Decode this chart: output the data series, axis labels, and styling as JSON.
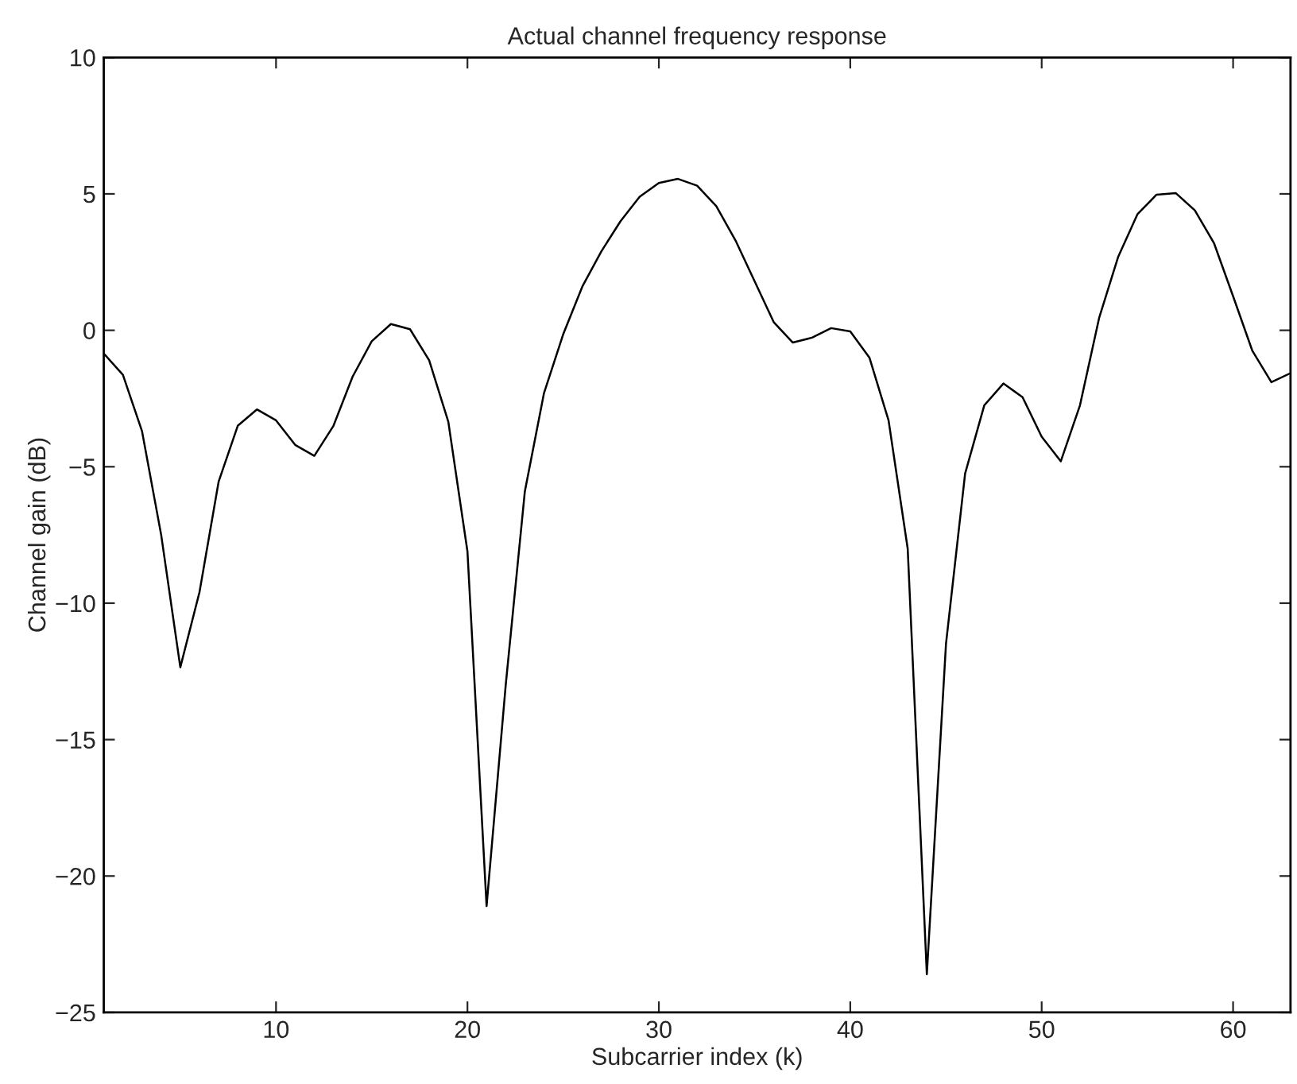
{
  "chart_data": {
    "type": "line",
    "title": "Actual channel frequency response",
    "xlabel": "Subcarrier index (k)",
    "ylabel": "Channel gain (dB)",
    "x": [
      1,
      2,
      3,
      4,
      5,
      6,
      7,
      8,
      9,
      10,
      11,
      12,
      13,
      14,
      15,
      16,
      17,
      18,
      19,
      20,
      21,
      22,
      23,
      24,
      25,
      26,
      27,
      28,
      29,
      30,
      31,
      32,
      33,
      34,
      35,
      36,
      37,
      38,
      39,
      40,
      41,
      42,
      43,
      44,
      45,
      46,
      47,
      48,
      49,
      50,
      51,
      52,
      53,
      54,
      55,
      56,
      57,
      58,
      59,
      60,
      61,
      62,
      63
    ],
    "series": [
      {
        "color": "#000000",
        "values": [
          -0.85,
          -1.63,
          -3.7,
          -7.5,
          -12.35,
          -9.6,
          -5.55,
          -3.5,
          -2.9,
          -3.3,
          -4.2,
          -4.6,
          -3.5,
          -1.7,
          -0.4,
          0.23,
          0.04,
          -1.1,
          -3.35,
          -8.1,
          -21.1,
          -13.0,
          -5.9,
          -2.3,
          -0.15,
          1.6,
          2.9,
          4.0,
          4.9,
          5.4,
          5.55,
          5.3,
          4.55,
          3.3,
          1.8,
          0.3,
          -0.45,
          -0.27,
          0.08,
          -0.04,
          -1.0,
          -3.3,
          -8.0,
          -23.6,
          -11.5,
          -5.25,
          -2.75,
          -1.95,
          -2.45,
          -3.9,
          -4.8,
          -2.75,
          0.45,
          2.7,
          4.25,
          4.97,
          5.03,
          4.4,
          3.2,
          1.25,
          -0.74,
          -1.9,
          -1.57
        ]
      }
    ],
    "xlim": [
      1,
      63
    ],
    "xticks": [
      10,
      20,
      30,
      40,
      50,
      60
    ],
    "ylim": [
      -25,
      10
    ],
    "yticks": [
      -25,
      -20,
      -15,
      -10,
      -5,
      0,
      5,
      10
    ],
    "grid": false,
    "legend": false,
    "marker": "none",
    "line_style": "solid"
  }
}
